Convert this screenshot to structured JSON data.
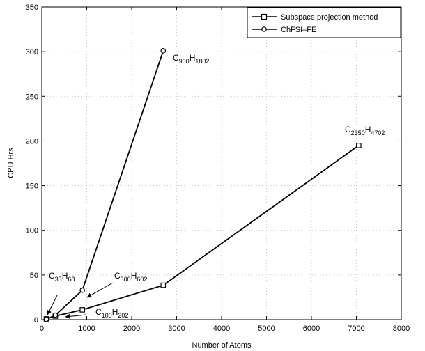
{
  "chart_data": {
    "type": "line",
    "xlabel": "Number of Atoms",
    "ylabel": "CPU Hrs",
    "xlim": [
      0,
      8000
    ],
    "ylim": [
      0,
      350
    ],
    "xticks": [
      0,
      1000,
      2000,
      3000,
      4000,
      5000,
      6000,
      7000,
      8000
    ],
    "yticks": [
      0,
      50,
      100,
      150,
      200,
      250,
      300,
      350
    ],
    "xtick_labels": [
      "0",
      "1000",
      "2000",
      "3000",
      "4000",
      "5000",
      "6000",
      "7000",
      "8000"
    ],
    "ytick_labels": [
      "0",
      "50",
      "100",
      "150",
      "200",
      "250",
      "300",
      "350"
    ],
    "grid": true,
    "legend_position": "top-right",
    "series": [
      {
        "name": "Subspace projection method",
        "marker": "square",
        "x": [
          101,
          302,
          902,
          2702,
          7052
        ],
        "y": [
          0.8,
          4,
          11,
          38.5,
          195
        ]
      },
      {
        "name": "ChFSI–FE",
        "marker": "circle",
        "x": [
          101,
          302,
          902,
          2702
        ],
        "y": [
          0.5,
          5,
          33,
          301
        ]
      }
    ],
    "annotations": [
      {
        "parts": [
          [
            "C",
            false
          ],
          [
            "33",
            true
          ],
          [
            "H",
            false
          ],
          [
            "68",
            true
          ]
        ],
        "arrow": true
      },
      {
        "parts": [
          [
            "C",
            false
          ],
          [
            "100",
            true
          ],
          [
            "H",
            false
          ],
          [
            "202",
            true
          ]
        ],
        "arrow": true
      },
      {
        "parts": [
          [
            "C",
            false
          ],
          [
            "300",
            true
          ],
          [
            "H",
            false
          ],
          [
            "602",
            true
          ]
        ],
        "arrow": true
      },
      {
        "parts": [
          [
            "C",
            false
          ],
          [
            "900",
            true
          ],
          [
            "H",
            false
          ],
          [
            "1802",
            true
          ]
        ],
        "arrow": false
      },
      {
        "parts": [
          [
            "C",
            false
          ],
          [
            "2350",
            true
          ],
          [
            "H",
            false
          ],
          [
            "4702",
            true
          ]
        ],
        "arrow": false
      }
    ]
  }
}
